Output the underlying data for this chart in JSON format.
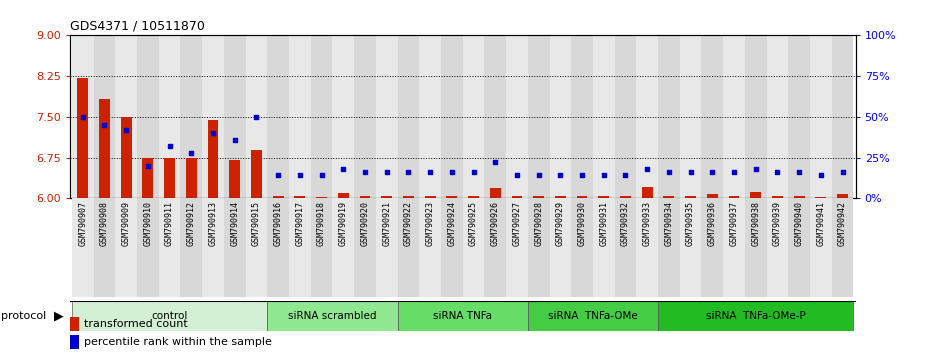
{
  "title": "GDS4371 / 10511870",
  "samples": [
    "GSM790907",
    "GSM790908",
    "GSM790909",
    "GSM790910",
    "GSM790911",
    "GSM790912",
    "GSM790913",
    "GSM790914",
    "GSM790915",
    "GSM790916",
    "GSM790917",
    "GSM790918",
    "GSM790919",
    "GSM790920",
    "GSM790921",
    "GSM790922",
    "GSM790923",
    "GSM790924",
    "GSM790925",
    "GSM790926",
    "GSM790927",
    "GSM790928",
    "GSM790929",
    "GSM790930",
    "GSM790931",
    "GSM790932",
    "GSM790933",
    "GSM790934",
    "GSM790935",
    "GSM790936",
    "GSM790937",
    "GSM790938",
    "GSM790939",
    "GSM790940",
    "GSM790941",
    "GSM790942"
  ],
  "red_values": [
    8.22,
    7.82,
    7.5,
    6.75,
    6.75,
    6.75,
    7.45,
    6.7,
    6.88,
    6.05,
    6.05,
    6.02,
    6.1,
    6.05,
    6.05,
    6.05,
    6.05,
    6.05,
    6.05,
    6.18,
    6.05,
    6.05,
    6.05,
    6.05,
    6.05,
    6.05,
    6.2,
    6.05,
    6.05,
    6.08,
    6.05,
    6.12,
    6.05,
    6.05,
    6.02,
    6.08
  ],
  "blue_values": [
    50,
    45,
    42,
    20,
    32,
    28,
    40,
    36,
    50,
    14,
    14,
    14,
    18,
    16,
    16,
    16,
    16,
    16,
    16,
    22,
    14,
    14,
    14,
    14,
    14,
    14,
    18,
    16,
    16,
    16,
    16,
    18,
    16,
    16,
    14,
    16
  ],
  "groups": [
    {
      "label": "control",
      "start": 0,
      "end": 9,
      "color": "#d4f0d4"
    },
    {
      "label": "siRNA scrambled",
      "start": 9,
      "end": 15,
      "color": "#90e890"
    },
    {
      "label": "siRNA TNFa",
      "start": 15,
      "end": 21,
      "color": "#66dd66"
    },
    {
      "label": "siRNA  TNFa-OMe",
      "start": 21,
      "end": 27,
      "color": "#44cc44"
    },
    {
      "label": "siRNA  TNFa-OMe-P",
      "start": 27,
      "end": 36,
      "color": "#22bb22"
    }
  ],
  "ylim_left": [
    6,
    9
  ],
  "ylim_right": [
    0,
    100
  ],
  "yticks_left": [
    6,
    6.75,
    7.5,
    8.25,
    9
  ],
  "yticks_right": [
    0,
    25,
    50,
    75,
    100
  ],
  "ytick_labels_right": [
    "0%",
    "25%",
    "50%",
    "75%",
    "100%"
  ],
  "red_color": "#cc2200",
  "blue_color": "#0000cc",
  "bg_color": "#ffffff"
}
